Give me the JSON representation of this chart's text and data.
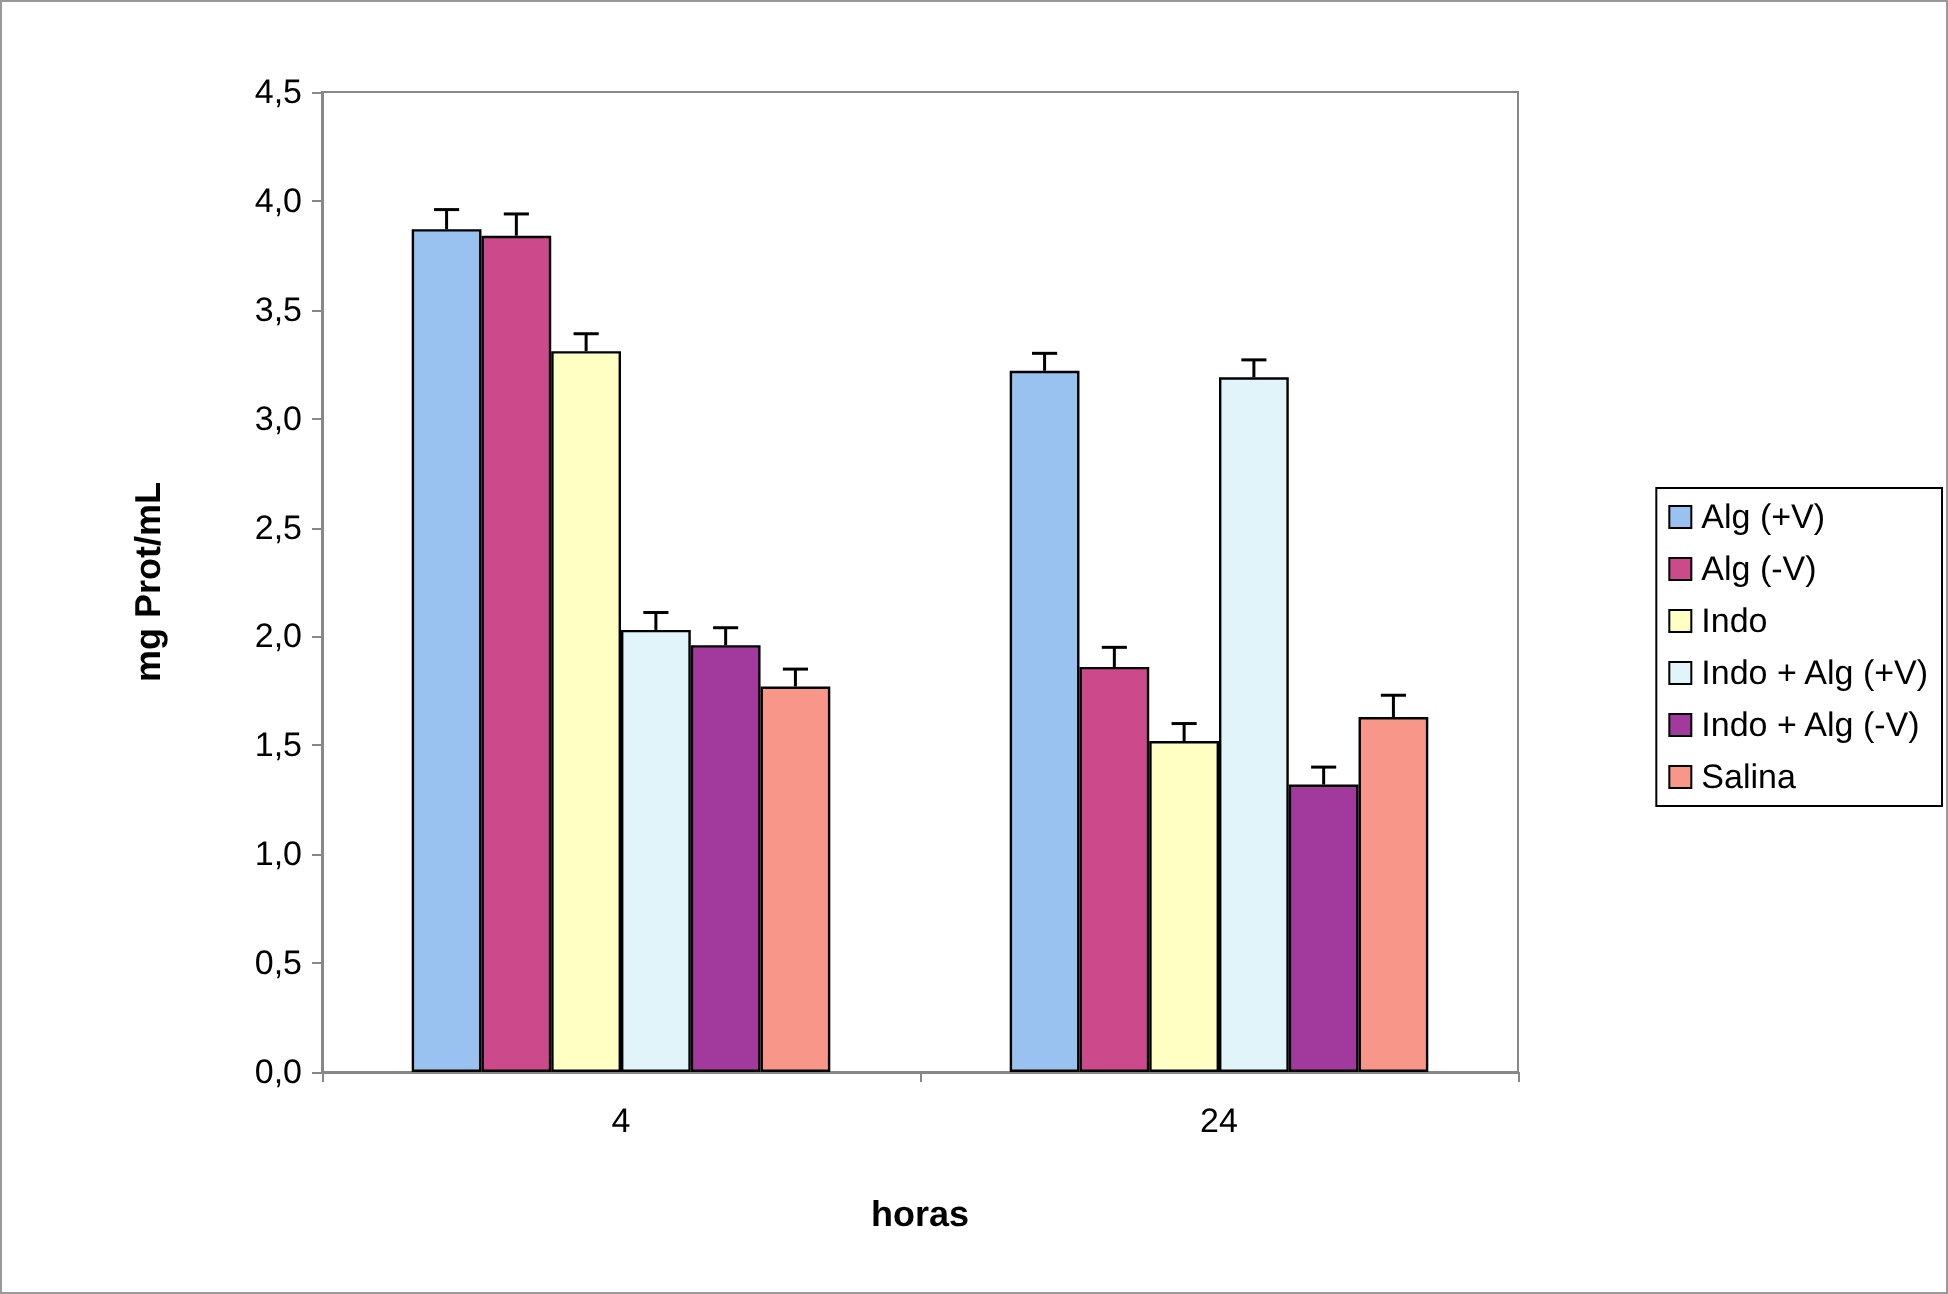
{
  "chart_data": {
    "type": "bar",
    "xlabel": "horas",
    "ylabel": "mg Prot/mL",
    "categories": [
      "4",
      "24"
    ],
    "series": [
      {
        "name": "Alg (+V)",
        "color": "#99c2f0",
        "values": [
          3.87,
          3.22
        ],
        "errors": [
          0.09,
          0.08
        ]
      },
      {
        "name": "Alg (-V)",
        "color": "#cc4a8c",
        "values": [
          3.84,
          1.86
        ],
        "errors": [
          0.1,
          0.09
        ]
      },
      {
        "name": "Indo",
        "color": "#ffffc4",
        "values": [
          3.31,
          1.52
        ],
        "errors": [
          0.08,
          0.08
        ]
      },
      {
        "name": "Indo + Alg (+V)",
        "color": "#e0f4fa",
        "values": [
          2.03,
          3.19
        ],
        "errors": [
          0.08,
          0.08
        ]
      },
      {
        "name": "Indo + Alg (-V)",
        "color": "#a23a9e",
        "values": [
          1.96,
          1.32
        ],
        "errors": [
          0.08,
          0.08
        ]
      },
      {
        "name": "Salina",
        "color": "#f8968a",
        "values": [
          1.77,
          1.63
        ],
        "errors": [
          0.08,
          0.1
        ]
      }
    ],
    "ylim": [
      0,
      4.5
    ],
    "yticks": [
      {
        "value": 0,
        "label": "0,0"
      },
      {
        "value": 0.5,
        "label": "0,5"
      },
      {
        "value": 1,
        "label": "1,0"
      },
      {
        "value": 1.5,
        "label": "1,5"
      },
      {
        "value": 2,
        "label": "2,0"
      },
      {
        "value": 2.5,
        "label": "2,5"
      },
      {
        "value": 3,
        "label": "3,0"
      },
      {
        "value": 3.5,
        "label": "3,5"
      },
      {
        "value": 4,
        "label": "4,0"
      },
      {
        "value": 4.5,
        "label": "4,5"
      }
    ],
    "grid": false,
    "legend": "right"
  }
}
